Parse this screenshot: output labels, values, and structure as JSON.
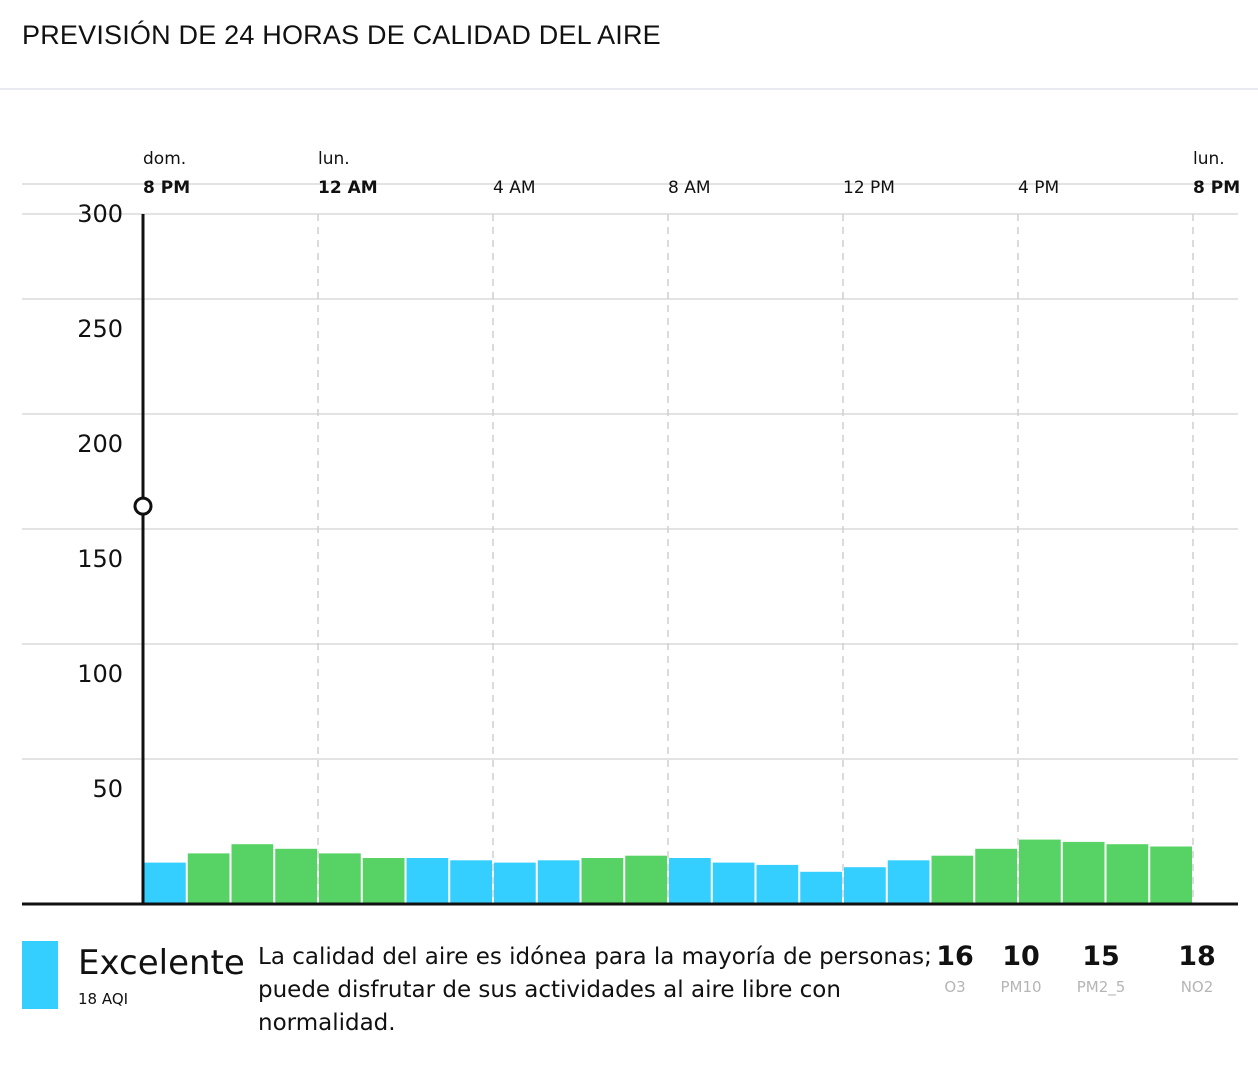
{
  "title": "PREVISIÓN DE 24 HORAS DE CALIDAD DEL AIRE",
  "colors": {
    "good": "#35cfff",
    "moderate": "#56d364",
    "axis": "#111111",
    "grid": "#e3e3e3",
    "dash": "#cfcfcf"
  },
  "chart_data": {
    "type": "bar",
    "ylim": [
      0,
      300
    ],
    "yticks": [
      50,
      100,
      150,
      200,
      250,
      300
    ],
    "x_labels": [
      {
        "day": "dom.",
        "time": "8 PM",
        "bold": true,
        "hour": 0
      },
      {
        "day": "lun.",
        "time": "12 AM",
        "bold": true,
        "hour": 4
      },
      {
        "day": "",
        "time": "4 AM",
        "bold": false,
        "hour": 8
      },
      {
        "day": "",
        "time": "8 AM",
        "bold": false,
        "hour": 12
      },
      {
        "day": "",
        "time": "12 PM",
        "bold": false,
        "hour": 16
      },
      {
        "day": "",
        "time": "4 PM",
        "bold": false,
        "hour": 20
      },
      {
        "day": "lun.",
        "time": "8 PM",
        "bold": true,
        "hour": 24
      }
    ],
    "values": [
      18,
      22,
      26,
      24,
      22,
      20,
      20,
      19,
      18,
      19,
      20,
      21,
      20,
      18,
      17,
      14,
      16,
      19,
      21,
      24,
      28,
      27,
      26,
      25
    ],
    "categories": [
      "good",
      "moderate",
      "moderate",
      "moderate",
      "moderate",
      "moderate",
      "good",
      "good",
      "good",
      "good",
      "moderate",
      "moderate",
      "good",
      "good",
      "good",
      "good",
      "good",
      "good",
      "moderate",
      "moderate",
      "moderate",
      "moderate",
      "moderate",
      "moderate"
    ],
    "current_marker_value": 173
  },
  "legend": {
    "level": "Excelente",
    "aqi": "18 AQI",
    "description": "La calidad del aire es idónea para la mayoría de personas; puede disfrutar de sus actividades al aire libre con normalidad.",
    "pollutants": [
      {
        "value": "16",
        "name": "O3"
      },
      {
        "value": "10",
        "name": "PM10"
      },
      {
        "value": "15",
        "name": "PM2_5"
      },
      {
        "value": "18",
        "name": "NO2"
      }
    ]
  }
}
